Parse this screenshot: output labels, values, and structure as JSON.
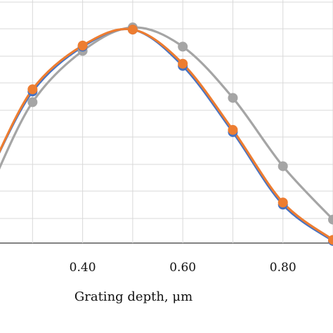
{
  "chart_data": {
    "type": "line",
    "xlabel": "Grating depth, μm",
    "ylabel": "",
    "title": "",
    "xlim": [
      0.235,
      0.9
    ],
    "x_ticks": [
      0.4,
      0.6,
      0.8
    ],
    "x_tick_labels": [
      "0.40",
      "0.60",
      "0.80"
    ],
    "grid": true,
    "legend": "none",
    "series": [
      {
        "color": "#4472C4",
        "x": [
          0.3,
          0.4,
          0.5,
          0.6,
          0.7,
          0.8,
          0.9
        ],
        "y": [
          0.71,
          0.92,
          1.0,
          0.83,
          0.52,
          0.18,
          0.01
        ]
      },
      {
        "color": "#ED7D31",
        "x": [
          0.3,
          0.4,
          0.5,
          0.6,
          0.7,
          0.8,
          0.9
        ],
        "y": [
          0.72,
          0.925,
          1.0,
          0.84,
          0.53,
          0.19,
          0.015
        ]
      },
      {
        "color": "#A5A5A5",
        "x": [
          0.3,
          0.4,
          0.5,
          0.6,
          0.7,
          0.8,
          0.9
        ],
        "y": [
          0.66,
          0.9,
          1.01,
          0.92,
          0.68,
          0.36,
          0.11
        ]
      }
    ]
  }
}
